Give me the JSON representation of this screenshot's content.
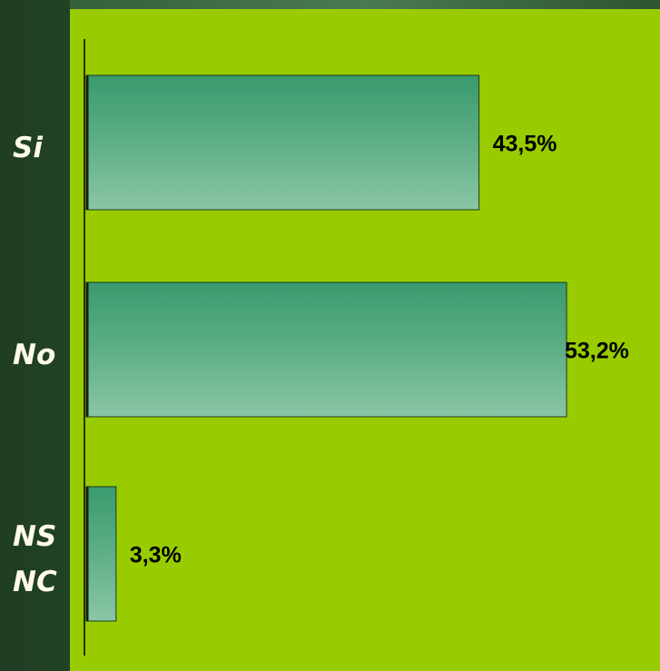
{
  "chart_data": {
    "type": "barh",
    "categories": [
      "Si",
      "No",
      "NS NC"
    ],
    "values": [
      43.5,
      53.2,
      3.3
    ],
    "value_labels": [
      "43,5%",
      "53,2%",
      "3,3%"
    ],
    "color": "#3a9a6e"
  }
}
